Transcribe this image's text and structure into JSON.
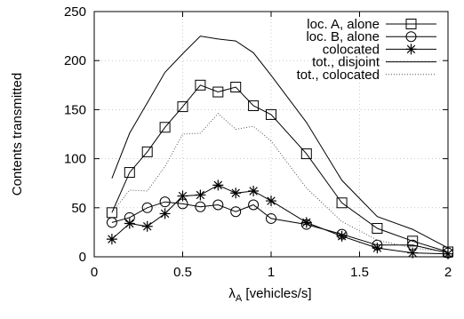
{
  "chart_data": {
    "type": "line",
    "title": "",
    "xlabel_main": "λ",
    "xlabel_sub": "A",
    "xlabel_rest": " [vehicles/s]",
    "ylabel": "Contents transmitted",
    "xlim": [
      0,
      2
    ],
    "ylim": [
      0,
      250
    ],
    "xticks": [
      0,
      0.5,
      1,
      1.5,
      2
    ],
    "xtick_labels": [
      "0",
      "0.5",
      "1",
      "1.5",
      "2"
    ],
    "yticks": [
      0,
      50,
      100,
      150,
      200,
      250
    ],
    "ytick_labels": [
      "0",
      "50",
      "100",
      "150",
      "200",
      "250"
    ],
    "grid": true,
    "legend_position": "top-right",
    "series": [
      {
        "name": "loc. A, alone",
        "marker": "square",
        "line_style": "solid",
        "x": [
          0.1,
          0.2,
          0.3,
          0.4,
          0.5,
          0.6,
          0.7,
          0.8,
          0.9,
          1.0,
          1.2,
          1.4,
          1.6,
          1.8,
          2.0
        ],
        "y": [
          45,
          86,
          107,
          132,
          153,
          175,
          168,
          173,
          154,
          145,
          105,
          55,
          29,
          16,
          5
        ]
      },
      {
        "name": "loc. B, alone",
        "marker": "circle",
        "line_style": "solid",
        "x": [
          0.1,
          0.2,
          0.3,
          0.4,
          0.5,
          0.6,
          0.7,
          0.8,
          0.9,
          1.0,
          1.2,
          1.4,
          1.6,
          1.8,
          2.0
        ],
        "y": [
          35,
          40,
          50,
          56,
          54,
          51,
          53,
          46,
          53,
          39,
          33,
          23,
          12,
          12,
          4
        ]
      },
      {
        "name": "colocated",
        "marker": "star",
        "line_style": "solid",
        "x": [
          0.1,
          0.2,
          0.3,
          0.4,
          0.5,
          0.6,
          0.7,
          0.8,
          0.9,
          1.0,
          1.2,
          1.4,
          1.6,
          1.8,
          2.0
        ],
        "y": [
          18,
          34,
          31,
          44,
          62,
          63,
          73,
          65,
          67,
          57,
          35,
          21,
          9,
          4,
          3
        ]
      },
      {
        "name": "tot., disjoint",
        "marker": "none",
        "line_style": "solid",
        "x": [
          0.1,
          0.2,
          0.3,
          0.4,
          0.5,
          0.6,
          0.7,
          0.8,
          0.9,
          1.0,
          1.2,
          1.4,
          1.6,
          1.8,
          2.0
        ],
        "y": [
          80,
          126,
          157,
          188,
          207,
          225,
          222,
          220,
          208,
          185,
          137,
          78,
          41,
          28,
          9
        ]
      },
      {
        "name": "tot., colocated",
        "marker": "none",
        "line_style": "dotted",
        "x": [
          0.1,
          0.2,
          0.3,
          0.4,
          0.5,
          0.6,
          0.7,
          0.8,
          0.9,
          1.0,
          1.2,
          1.4,
          1.6,
          1.8,
          2.0
        ],
        "y": [
          45,
          68,
          67,
          92,
          125,
          126,
          146,
          130,
          133,
          118,
          70,
          36,
          17,
          9,
          5
        ]
      }
    ]
  }
}
